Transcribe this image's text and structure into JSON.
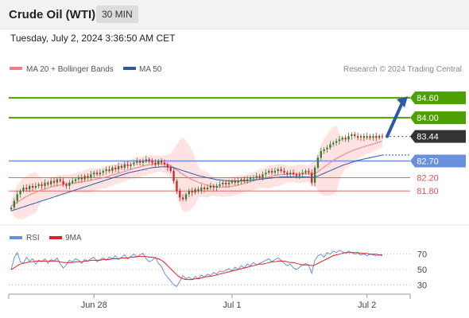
{
  "header": {
    "instrument": "Crude Oil (WTI)",
    "timeframe": "30 MIN",
    "datetime": "Tuesday, July 2, 2024 3:36:50 AM CET"
  },
  "legend": {
    "ma20_label": "MA 20 + Bollinger Bands",
    "ma50_label": "MA 50",
    "copyright": "Research © 2024 Trading Central",
    "rsi_label": "RSI",
    "rsi_ma_label": "9MA"
  },
  "colors": {
    "ma20": "#f08080",
    "bollinger_fill": "#ffd6d6",
    "ma50": "#2b5aa8",
    "target_line": "#4ca000",
    "pivot_line": "#6a8fdc",
    "support_line": "#e05050",
    "arrow": "#2b5aa8",
    "rsi": "#6a8fdc",
    "rsi_ma": "#dd2222",
    "candle_up": "#2e7d32",
    "candle_down": "#c62828"
  },
  "chart_data": {
    "type": "candlestick",
    "price_range": [
      80.8,
      85.2
    ],
    "x_ticks": [
      {
        "label": "Jun 28",
        "bar": 27
      },
      {
        "label": "Jul 1",
        "bar": 72
      },
      {
        "label": "Jul 2",
        "bar": 116
      }
    ],
    "levels": [
      {
        "value": 84.6,
        "label": "84.60",
        "kind": "target"
      },
      {
        "value": 84.0,
        "label": "84.00",
        "kind": "target"
      },
      {
        "value": 83.44,
        "label": "83.44",
        "kind": "last"
      },
      {
        "value": 82.7,
        "label": "82.70",
        "kind": "pivot"
      },
      {
        "value": 82.2,
        "label": "82.20",
        "kind": "support"
      },
      {
        "value": 81.8,
        "label": "81.80",
        "kind": "support"
      }
    ],
    "close": [
      81.3,
      81.5,
      81.7,
      81.8,
      81.9,
      81.85,
      81.95,
      81.9,
      81.95,
      82.0,
      81.95,
      82.05,
      82.0,
      82.1,
      82.05,
      82.15,
      82.1,
      82.0,
      81.95,
      82.05,
      82.1,
      82.15,
      82.2,
      82.15,
      82.25,
      82.2,
      82.3,
      82.35,
      82.3,
      82.35,
      82.4,
      82.45,
      82.4,
      82.5,
      82.45,
      82.55,
      82.5,
      82.6,
      82.55,
      82.6,
      82.65,
      82.7,
      82.65,
      82.7,
      82.75,
      82.7,
      82.65,
      82.6,
      82.7,
      82.65,
      82.6,
      82.5,
      82.4,
      82.1,
      81.8,
      81.6,
      81.55,
      81.7,
      81.8,
      81.75,
      81.85,
      81.8,
      81.9,
      81.85,
      81.9,
      81.95,
      81.9,
      81.95,
      82.0,
      82.05,
      82.0,
      82.05,
      82.1,
      82.05,
      82.1,
      82.15,
      82.1,
      82.15,
      82.2,
      82.2,
      82.25,
      82.2,
      82.3,
      82.35,
      82.4,
      82.35,
      82.4,
      82.45,
      82.4,
      82.35,
      82.3,
      82.35,
      82.3,
      82.25,
      82.3,
      82.35,
      82.4,
      82.35,
      82.05,
      82.5,
      82.8,
      83.0,
      83.05,
      83.1,
      83.2,
      83.25,
      83.3,
      83.35,
      83.4,
      83.35,
      83.45,
      83.5,
      83.45,
      83.4,
      83.45,
      83.4,
      83.45,
      83.4,
      83.45,
      83.4,
      83.45,
      83.44
    ],
    "ma20": [
      81.35,
      81.4,
      81.46,
      81.52,
      81.58,
      81.63,
      81.68,
      81.72,
      81.76,
      81.8,
      81.83,
      81.86,
      81.89,
      81.92,
      81.94,
      81.96,
      81.98,
      82.0,
      82.01,
      82.02,
      82.03,
      82.04,
      82.06,
      82.07,
      82.09,
      82.1,
      82.12,
      82.14,
      82.16,
      82.18,
      82.2,
      82.22,
      82.25,
      82.28,
      82.3,
      82.33,
      82.36,
      82.39,
      82.42,
      82.45,
      82.48,
      82.5,
      82.52,
      82.55,
      82.57,
      82.59,
      82.6,
      82.61,
      82.62,
      82.62,
      82.61,
      82.59,
      82.56,
      82.5,
      82.43,
      82.36,
      82.3,
      82.24,
      82.19,
      82.14,
      82.1,
      82.06,
      82.03,
      82.0,
      81.98,
      81.96,
      81.94,
      81.93,
      81.92,
      81.92,
      81.92,
      81.93,
      81.94,
      81.96,
      81.98,
      82.0,
      82.02,
      82.05,
      82.08,
      82.1,
      82.13,
      82.16,
      82.18,
      82.2,
      82.22,
      82.24,
      82.26,
      82.28,
      82.29,
      82.3,
      82.3,
      82.31,
      82.31,
      82.31,
      82.31,
      82.32,
      82.32,
      82.32,
      82.3,
      82.33,
      82.38,
      82.45,
      82.52,
      82.58,
      82.65,
      82.71,
      82.77,
      82.82,
      82.87,
      82.92,
      82.96,
      83.0,
      83.04,
      83.07,
      83.1,
      83.13,
      83.16,
      83.18,
      83.21,
      83.24,
      83.27,
      83.3
    ],
    "ma50": [
      81.2,
      81.23,
      81.26,
      81.29,
      81.32,
      81.35,
      81.38,
      81.41,
      81.44,
      81.47,
      81.5,
      81.53,
      81.56,
      81.59,
      81.62,
      81.65,
      81.68,
      81.71,
      81.74,
      81.77,
      81.8,
      81.83,
      81.86,
      81.89,
      81.92,
      81.95,
      81.98,
      82.01,
      82.04,
      82.07,
      82.1,
      82.13,
      82.16,
      82.19,
      82.22,
      82.25,
      82.28,
      82.31,
      82.34,
      82.36,
      82.38,
      82.4,
      82.42,
      82.44,
      82.46,
      82.48,
      82.5,
      82.51,
      82.52,
      82.53,
      82.53,
      82.53,
      82.52,
      82.5,
      82.47,
      82.44,
      82.41,
      82.38,
      82.35,
      82.32,
      82.29,
      82.26,
      82.24,
      82.22,
      82.2,
      82.18,
      82.16,
      82.14,
      82.13,
      82.12,
      82.11,
      82.1,
      82.1,
      82.1,
      82.1,
      82.1,
      82.1,
      82.11,
      82.12,
      82.13,
      82.14,
      82.15,
      82.16,
      82.17,
      82.18,
      82.19,
      82.2,
      82.21,
      82.22,
      82.22,
      82.22,
      82.22,
      82.22,
      82.22,
      82.22,
      82.22,
      82.22,
      82.22,
      82.2,
      82.22,
      82.25,
      82.29,
      82.33,
      82.37,
      82.41,
      82.45,
      82.49,
      82.53,
      82.57,
      82.6,
      82.63,
      82.66,
      82.69,
      82.72,
      82.74,
      82.76,
      82.78,
      82.8,
      82.82,
      82.84,
      82.86,
      82.88
    ],
    "rsi_range": [
      20,
      80
    ],
    "rsi_levels": [
      70,
      50,
      30
    ],
    "rsi": [
      50,
      65,
      72,
      60,
      58,
      66,
      61,
      64,
      57,
      62,
      60,
      64,
      58,
      63,
      61,
      65,
      57,
      52,
      56,
      62,
      60,
      64,
      62,
      58,
      63,
      61,
      64,
      66,
      60,
      63,
      65,
      62,
      66,
      64,
      68,
      63,
      66,
      69,
      64,
      67,
      70,
      66,
      69,
      71,
      64,
      60,
      62,
      66,
      58,
      54,
      45,
      40,
      35,
      30,
      28,
      35,
      42,
      38,
      40,
      37,
      41,
      38,
      43,
      40,
      44,
      42,
      46,
      44,
      48,
      47,
      49,
      51,
      48,
      53,
      50,
      55,
      52,
      57,
      55,
      59,
      56,
      58,
      60,
      62,
      64,
      60,
      63,
      65,
      62,
      58,
      55,
      57,
      52,
      50,
      53,
      56,
      58,
      55,
      45,
      62,
      68,
      70,
      66,
      72,
      70,
      74,
      72,
      75,
      73,
      71,
      74,
      72,
      70,
      71,
      69,
      70,
      68,
      70,
      69,
      68,
      69,
      68
    ],
    "rsi_ma": [
      50,
      52,
      55,
      57,
      58,
      59,
      60,
      60,
      61,
      61,
      61,
      61,
      61,
      61,
      61,
      61,
      60,
      59,
      59,
      59,
      59,
      60,
      60,
      60,
      61,
      61,
      62,
      62,
      62,
      62,
      63,
      63,
      63,
      64,
      64,
      64,
      65,
      65,
      65,
      66,
      66,
      67,
      67,
      67,
      67,
      66,
      66,
      65,
      64,
      62,
      59,
      55,
      51,
      47,
      43,
      40,
      38,
      37,
      37,
      37,
      38,
      38,
      39,
      40,
      41,
      41,
      42,
      43,
      44,
      45,
      46,
      47,
      48,
      49,
      50,
      51,
      52,
      53,
      54,
      55,
      56,
      57,
      57,
      58,
      59,
      60,
      60,
      61,
      61,
      61,
      60,
      59,
      59,
      58,
      57,
      56,
      56,
      56,
      55,
      56,
      58,
      60,
      62,
      64,
      66,
      68,
      69,
      70,
      71,
      72,
      72,
      72,
      72,
      72,
      71,
      71,
      71,
      70,
      70,
      70,
      69,
      69
    ]
  }
}
